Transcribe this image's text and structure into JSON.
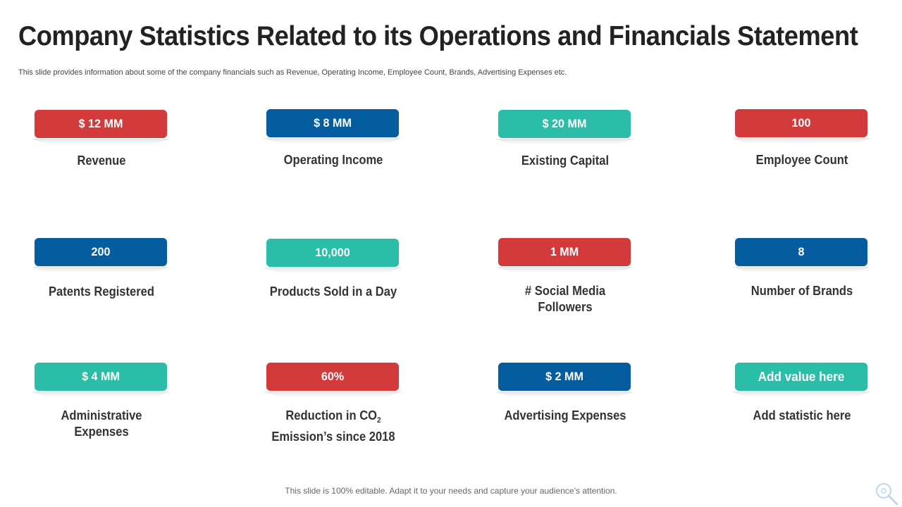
{
  "slide": {
    "title": "Company Statistics Related to its Operations and Financials Statement",
    "subtitle": "This slide provides information about some of the company financials such as Revenue, Operating Income, Employee Count, Brands, Advertising Expenses etc.",
    "footer": "This slide is 100% editable. Adapt it to your needs and capture your audience’s attention.",
    "corner_icon": "magnifier-icon"
  },
  "colors": {
    "red": "#d33a3c",
    "blue": "#055c9f",
    "teal": "#2bbda8"
  },
  "stats": [
    {
      "value": "$ 12 MM",
      "label": "Revenue",
      "color": "red"
    },
    {
      "value": "$ 8 MM",
      "label": "Operating Income",
      "color": "blue"
    },
    {
      "value": "$ 20 MM",
      "label": "Existing Capital",
      "color": "teal"
    },
    {
      "value": "100",
      "label": "Employee Count",
      "color": "red"
    },
    {
      "value": "200",
      "label": "Patents Registered",
      "color": "blue"
    },
    {
      "value": "10,000",
      "label": "Products Sold in a Day",
      "color": "teal"
    },
    {
      "value": "1 MM",
      "label_line1": "# Social Media",
      "label_line2": "Followers",
      "color": "red"
    },
    {
      "value": "8",
      "label": "Number of Brands",
      "color": "blue"
    },
    {
      "value": "$ 4 MM",
      "label_line1": "Administrative",
      "label_line2": "Expenses",
      "color": "teal"
    },
    {
      "value": "60%",
      "label_line1_pre": "Reduction in CO",
      "label_line1_sub": "2",
      "label_line2": "Emission’s since 2018",
      "color": "red"
    },
    {
      "value": "$ 2 MM",
      "label": "Advertising Expenses",
      "color": "blue"
    },
    {
      "value": "Add value here",
      "label": "Add statistic here",
      "color": "teal"
    }
  ]
}
